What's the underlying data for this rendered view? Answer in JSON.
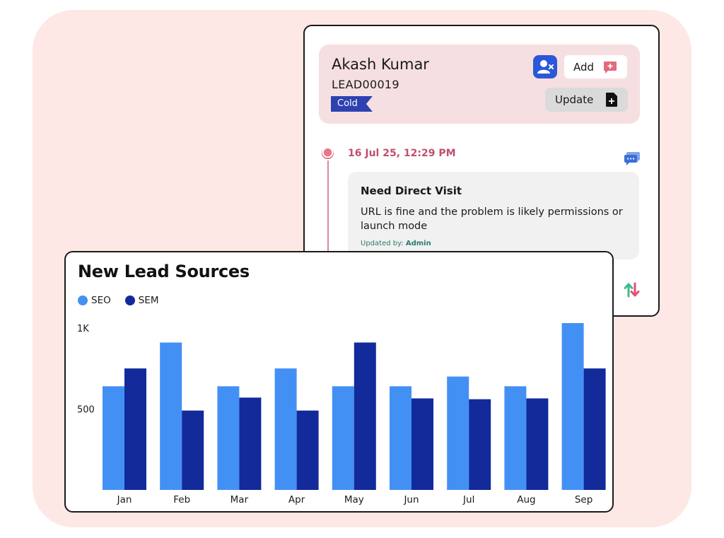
{
  "lead": {
    "name": "Akash Kumar",
    "id": "LEAD00019",
    "status": "Cold",
    "actions": {
      "assign_icon": "user-remove-icon",
      "add_label": "Add",
      "add_icon": "chat-plus-icon",
      "update_label": "Update",
      "update_icon": "file-plus-icon"
    },
    "timeline": {
      "date": "16 Jul 25, 12:29 PM",
      "note_title": "Need Direct Visit",
      "note_body": "URL is fine and the problem is likely permissions or launch mode",
      "updated_by_label": "Updated by:",
      "updated_by": "Admin"
    },
    "colors": {
      "header_bg": "#f6dfe0",
      "badge": "#2d41b1",
      "timeline_accent": "#c0506c"
    }
  },
  "chart": {
    "title": "New Lead Sources",
    "colors": {
      "SEO": "#4390f5",
      "SEM": "#122a9a"
    }
  },
  "chart_data": {
    "type": "bar",
    "title": "New Lead Sources",
    "categories": [
      "Jan",
      "Feb",
      "Mar",
      "Apr",
      "May",
      "Jun",
      "Jul",
      "Aug",
      "Sep"
    ],
    "series": [
      {
        "name": "SEO",
        "values": [
          640,
          910,
          640,
          750,
          640,
          640,
          700,
          640,
          1030
        ]
      },
      {
        "name": "SEM",
        "values": [
          750,
          490,
          570,
          490,
          910,
          565,
          560,
          565,
          750
        ]
      }
    ],
    "yticks": [
      {
        "value": 500,
        "label": "500"
      },
      {
        "value": 1000,
        "label": "1K"
      }
    ],
    "ylim": [
      0,
      1030
    ],
    "grid": false,
    "legend": "top-left"
  }
}
